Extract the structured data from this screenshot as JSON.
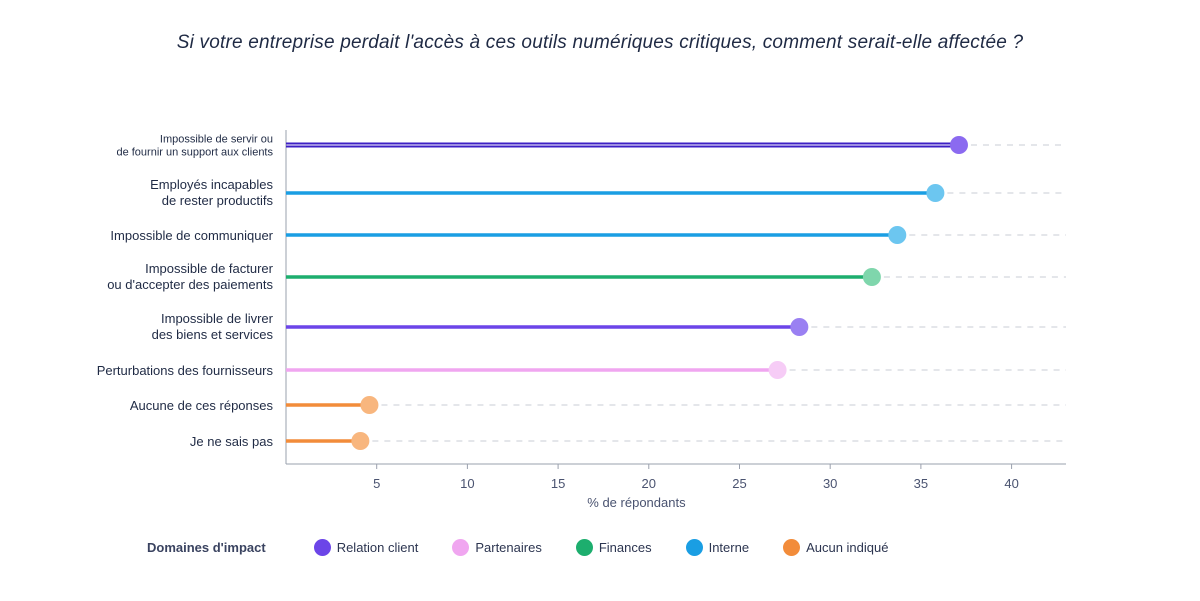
{
  "chart_data": {
    "type": "lollipop",
    "title": "Si votre entreprise perdait l'accès à ces outils numériques critiques, comment serait-elle affectée ?",
    "xlabel": "% de répondants",
    "x_ticks": [
      5,
      10,
      15,
      20,
      25,
      30,
      35,
      40
    ],
    "xlim": [
      0,
      43
    ],
    "grid": "dashed-row-guides",
    "legend_title": "Domaines d'impact",
    "legend_placement": "bottom",
    "legend": [
      {
        "name": "Relation client",
        "color": "#6c45e8"
      },
      {
        "name": "Partenaires",
        "color": "#f0a6f0"
      },
      {
        "name": "Finances",
        "color": "#1dae6e"
      },
      {
        "name": "Interne",
        "color": "#1a9ee3"
      },
      {
        "name": "Aucun indiqué",
        "color": "#f28c3a"
      }
    ],
    "rows": [
      {
        "label": [
          "Impossible de servir ou",
          "de fournir un support aux clients"
        ],
        "value": 37.1,
        "domain": "Relation client",
        "line_color": "#3d1fc4",
        "dot_color": "#8b6af0"
      },
      {
        "label": [
          "Employés incapables",
          "de rester productifs"
        ],
        "value": 35.8,
        "domain": "Interne",
        "line_color": "#1a9ee3",
        "dot_color": "#6cc6f0"
      },
      {
        "label": [
          "Impossible de communiquer"
        ],
        "value": 33.7,
        "domain": "Interne",
        "line_color": "#1a9ee3",
        "dot_color": "#6cc6f0"
      },
      {
        "label": [
          "Impossible de facturer",
          "ou d'accepter des paiements"
        ],
        "value": 32.3,
        "domain": "Finances",
        "line_color": "#1dae6e",
        "dot_color": "#7fd6ac"
      },
      {
        "label": [
          "Impossible de  livrer",
          "des biens et services"
        ],
        "value": 28.3,
        "domain": "Relation client",
        "line_color": "#6c45e8",
        "dot_color": "#9a80f2"
      },
      {
        "label": [
          "Perturbations des fournisseurs"
        ],
        "value": 27.1,
        "domain": "Partenaires",
        "line_color": "#f0a6f0",
        "dot_color": "#f6ccf6"
      },
      {
        "label": [
          "Aucune de ces réponses"
        ],
        "value": 4.6,
        "domain": "Aucun indiqué",
        "line_color": "#f28c3a",
        "dot_color": "#f8b67e"
      },
      {
        "label": [
          "Je ne sais pas"
        ],
        "value": 4.1,
        "domain": "Aucun indiqué",
        "line_color": "#f28c3a",
        "dot_color": "#f8b67e"
      }
    ]
  }
}
